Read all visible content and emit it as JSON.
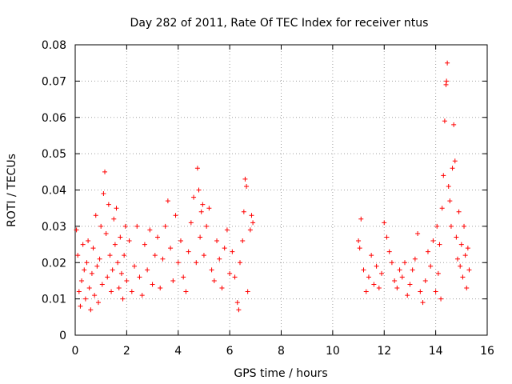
{
  "chart_data": {
    "type": "scatter",
    "title": "Day 282 of 2011, Rate Of TEC Index for receiver ntus",
    "xlabel": "GPS time / hours",
    "ylabel": "ROTI / TECUs",
    "xlim": [
      0,
      16
    ],
    "ylim": [
      0,
      0.08
    ],
    "grid": true,
    "marker": "+",
    "color": "#ff0000",
    "xticks": [
      0,
      2,
      4,
      6,
      8,
      10,
      12,
      14,
      16
    ],
    "yticks": [
      0,
      0.01,
      0.02,
      0.03,
      0.04,
      0.05,
      0.06,
      0.07,
      0.08
    ],
    "xtick_labels": [
      "0",
      "2",
      "4",
      "6",
      "8",
      "10",
      "12",
      "14",
      "16"
    ],
    "ytick_labels": [
      "0",
      "0.01",
      "0.02",
      "0.03",
      "0.04",
      "0.05",
      "0.06",
      "0.07",
      "0.08"
    ],
    "series": [
      {
        "name": "ROTI",
        "points": [
          [
            0.05,
            0.029
          ],
          [
            0.1,
            0.022
          ],
          [
            0.15,
            0.012
          ],
          [
            0.2,
            0.008
          ],
          [
            0.25,
            0.015
          ],
          [
            0.3,
            0.025
          ],
          [
            0.35,
            0.018
          ],
          [
            0.4,
            0.01
          ],
          [
            0.45,
            0.02
          ],
          [
            0.5,
            0.026
          ],
          [
            0.55,
            0.013
          ],
          [
            0.6,
            0.007
          ],
          [
            0.65,
            0.017
          ],
          [
            0.7,
            0.024
          ],
          [
            0.75,
            0.011
          ],
          [
            0.8,
            0.033
          ],
          [
            0.85,
            0.019
          ],
          [
            0.9,
            0.009
          ],
          [
            0.95,
            0.021
          ],
          [
            1.0,
            0.03
          ],
          [
            1.05,
            0.014
          ],
          [
            1.1,
            0.039
          ],
          [
            1.15,
            0.045
          ],
          [
            1.2,
            0.028
          ],
          [
            1.25,
            0.016
          ],
          [
            1.3,
            0.036
          ],
          [
            1.35,
            0.022
          ],
          [
            1.4,
            0.012
          ],
          [
            1.45,
            0.018
          ],
          [
            1.5,
            0.032
          ],
          [
            1.55,
            0.025
          ],
          [
            1.6,
            0.035
          ],
          [
            1.65,
            0.02
          ],
          [
            1.7,
            0.013
          ],
          [
            1.75,
            0.027
          ],
          [
            1.8,
            0.017
          ],
          [
            1.85,
            0.01
          ],
          [
            1.9,
            0.022
          ],
          [
            1.95,
            0.03
          ],
          [
            2.0,
            0.015
          ],
          [
            2.1,
            0.026
          ],
          [
            2.2,
            0.012
          ],
          [
            2.3,
            0.019
          ],
          [
            2.4,
            0.03
          ],
          [
            2.5,
            0.016
          ],
          [
            2.6,
            0.011
          ],
          [
            2.7,
            0.025
          ],
          [
            2.8,
            0.018
          ],
          [
            2.9,
            0.029
          ],
          [
            3.0,
            0.014
          ],
          [
            3.1,
            0.022
          ],
          [
            3.2,
            0.027
          ],
          [
            3.3,
            0.013
          ],
          [
            3.4,
            0.021
          ],
          [
            3.5,
            0.03
          ],
          [
            3.6,
            0.037
          ],
          [
            3.7,
            0.024
          ],
          [
            3.8,
            0.015
          ],
          [
            3.9,
            0.033
          ],
          [
            4.0,
            0.02
          ],
          [
            4.1,
            0.026
          ],
          [
            4.2,
            0.016
          ],
          [
            4.3,
            0.012
          ],
          [
            4.4,
            0.023
          ],
          [
            4.5,
            0.031
          ],
          [
            4.6,
            0.038
          ],
          [
            4.7,
            0.02
          ],
          [
            4.75,
            0.046
          ],
          [
            4.8,
            0.04
          ],
          [
            4.85,
            0.027
          ],
          [
            4.9,
            0.034
          ],
          [
            4.95,
            0.036
          ],
          [
            5.0,
            0.022
          ],
          [
            5.1,
            0.03
          ],
          [
            5.2,
            0.035
          ],
          [
            5.3,
            0.018
          ],
          [
            5.4,
            0.015
          ],
          [
            5.5,
            0.026
          ],
          [
            5.6,
            0.021
          ],
          [
            5.7,
            0.013
          ],
          [
            5.8,
            0.024
          ],
          [
            5.9,
            0.029
          ],
          [
            6.0,
            0.017
          ],
          [
            6.1,
            0.023
          ],
          [
            6.2,
            0.016
          ],
          [
            6.3,
            0.009
          ],
          [
            6.35,
            0.007
          ],
          [
            6.4,
            0.02
          ],
          [
            6.5,
            0.026
          ],
          [
            6.55,
            0.034
          ],
          [
            6.6,
            0.043
          ],
          [
            6.65,
            0.041
          ],
          [
            6.7,
            0.012
          ],
          [
            6.8,
            0.029
          ],
          [
            6.85,
            0.033
          ],
          [
            6.9,
            0.031
          ],
          [
            11.0,
            0.026
          ],
          [
            11.05,
            0.024
          ],
          [
            11.1,
            0.032
          ],
          [
            11.2,
            0.018
          ],
          [
            11.3,
            0.012
          ],
          [
            11.4,
            0.016
          ],
          [
            11.5,
            0.022
          ],
          [
            11.6,
            0.014
          ],
          [
            11.7,
            0.019
          ],
          [
            11.8,
            0.013
          ],
          [
            11.9,
            0.017
          ],
          [
            12.0,
            0.031
          ],
          [
            12.1,
            0.027
          ],
          [
            12.2,
            0.023
          ],
          [
            12.3,
            0.02
          ],
          [
            12.4,
            0.015
          ],
          [
            12.5,
            0.013
          ],
          [
            12.6,
            0.018
          ],
          [
            12.7,
            0.016
          ],
          [
            12.8,
            0.02
          ],
          [
            12.9,
            0.011
          ],
          [
            13.0,
            0.014
          ],
          [
            13.1,
            0.018
          ],
          [
            13.2,
            0.021
          ],
          [
            13.3,
            0.028
          ],
          [
            13.4,
            0.012
          ],
          [
            13.5,
            0.009
          ],
          [
            13.6,
            0.015
          ],
          [
            13.7,
            0.023
          ],
          [
            13.8,
            0.019
          ],
          [
            13.9,
            0.026
          ],
          [
            14.0,
            0.012
          ],
          [
            14.05,
            0.03
          ],
          [
            14.1,
            0.017
          ],
          [
            14.15,
            0.025
          ],
          [
            14.2,
            0.01
          ],
          [
            14.25,
            0.035
          ],
          [
            14.3,
            0.044
          ],
          [
            14.35,
            0.059
          ],
          [
            14.4,
            0.069
          ],
          [
            14.42,
            0.07
          ],
          [
            14.45,
            0.075
          ],
          [
            14.5,
            0.041
          ],
          [
            14.55,
            0.037
          ],
          [
            14.6,
            0.03
          ],
          [
            14.65,
            0.046
          ],
          [
            14.7,
            0.058
          ],
          [
            14.75,
            0.048
          ],
          [
            14.8,
            0.027
          ],
          [
            14.85,
            0.021
          ],
          [
            14.9,
            0.034
          ],
          [
            14.95,
            0.019
          ],
          [
            15.0,
            0.025
          ],
          [
            15.05,
            0.016
          ],
          [
            15.1,
            0.03
          ],
          [
            15.15,
            0.022
          ],
          [
            15.2,
            0.013
          ],
          [
            15.25,
            0.024
          ],
          [
            15.3,
            0.018
          ]
        ]
      }
    ]
  }
}
